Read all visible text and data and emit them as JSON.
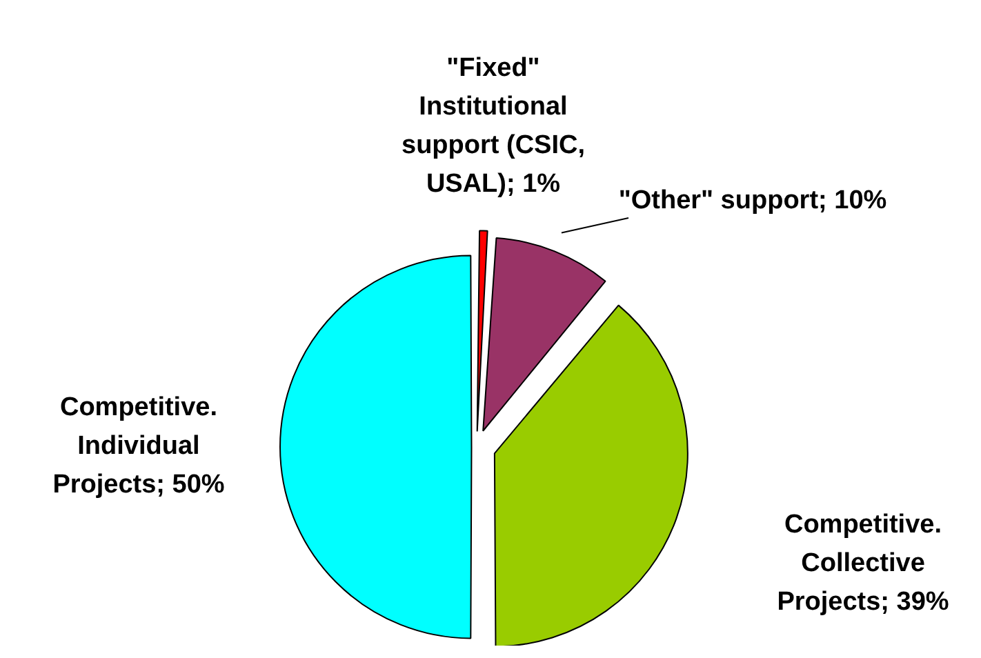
{
  "chart_data": {
    "type": "pie",
    "categories": [
      "\"Fixed\" Institutional support (CSIC, USAL)",
      "\"Other\" support",
      "Competitive. Collective Projects",
      "Competitive. Individual Projects"
    ],
    "values": [
      1,
      10,
      39,
      50
    ],
    "value_labels": [
      "1%",
      "10%",
      "39%",
      "50%"
    ],
    "colors": [
      "#ff0000",
      "#993366",
      "#99cc00",
      "#00ffff"
    ],
    "legend": false
  }
}
